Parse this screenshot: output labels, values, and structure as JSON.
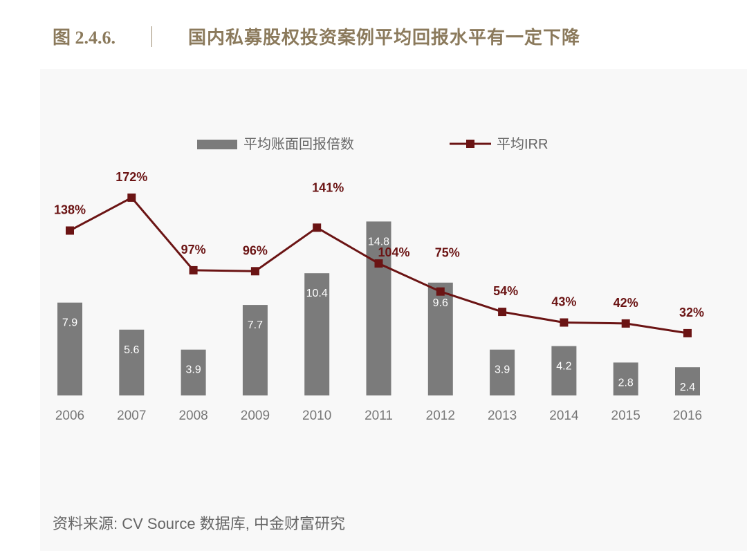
{
  "figure_number": "图 2.4.6.",
  "figure_title": "国内私募股权投资案例平均回报水平有一定下降",
  "source": "资料来源: CV Source 数据库, 中金财富研究",
  "colors": {
    "bar": "#7b7b7b",
    "line": "#6b1414",
    "title": "#8b7a5c",
    "panel": "#f8f8f8"
  },
  "chart_data": {
    "type": "bar",
    "categories": [
      "2006",
      "2007",
      "2008",
      "2009",
      "2010",
      "2011",
      "2012",
      "2013",
      "2014",
      "2015",
      "2016"
    ],
    "series": [
      {
        "name": "平均账面回报倍数",
        "type": "bar",
        "values": [
          7.9,
          5.6,
          3.9,
          7.7,
          10.4,
          14.8,
          9.6,
          3.9,
          4.2,
          2.8,
          2.4
        ],
        "labels": [
          "7.9",
          "5.6",
          "3.9",
          "7.7",
          "10.4",
          "14.8",
          "9.6",
          "3.9",
          "4.2",
          "2.8",
          "2.4"
        ]
      },
      {
        "name": "平均IRR",
        "type": "line",
        "values": [
          138,
          172,
          97,
          96,
          141,
          104,
          75,
          54,
          43,
          42,
          32
        ],
        "labels": [
          "138%",
          "172%",
          "97%",
          "96%",
          "141%",
          "104%",
          "75%",
          "54%",
          "43%",
          "42%",
          "32%"
        ]
      }
    ],
    "legend": {
      "position": "top"
    },
    "grid": false
  }
}
